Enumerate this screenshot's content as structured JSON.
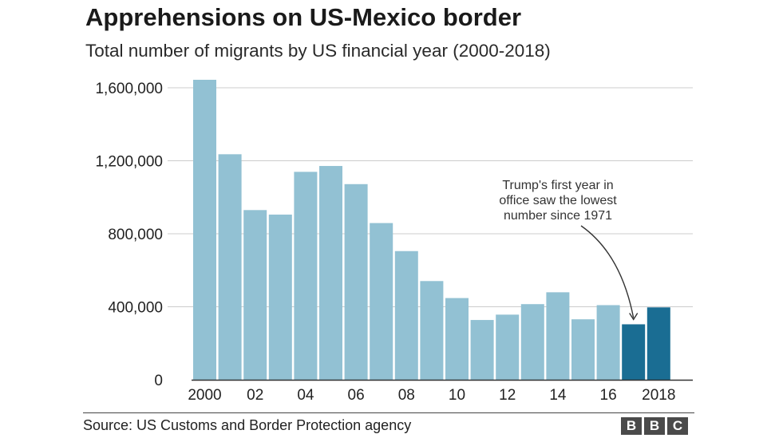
{
  "header": {
    "title": "Apprehensions on US-Mexico border",
    "subtitle": "Total number of migrants by US financial year (2000-2018)"
  },
  "footer": {
    "source": "Source: US Customs and Border Protection agency",
    "logo": [
      "B",
      "B",
      "C"
    ]
  },
  "colors": {
    "bar": "#92c1d3",
    "highlight": "#1a6d93",
    "grid": "#cccccc",
    "axis": "#333333"
  },
  "chart_data": {
    "type": "bar",
    "title": "Apprehensions on US-Mexico border",
    "subtitle": "Total number of migrants by US financial year (2000-2018)",
    "categories": [
      "2000",
      "2001",
      "2002",
      "2003",
      "2004",
      "2005",
      "2006",
      "2007",
      "2008",
      "2009",
      "2010",
      "2011",
      "2012",
      "2013",
      "2014",
      "2015",
      "2016",
      "2017",
      "2018"
    ],
    "tick_labels": [
      "2000",
      "",
      "02",
      "",
      "04",
      "",
      "06",
      "",
      "08",
      "",
      "10",
      "",
      "12",
      "",
      "14",
      "",
      "16",
      "",
      "2018"
    ],
    "values": [
      1643679,
      1235718,
      929809,
      905065,
      1139282,
      1171396,
      1071972,
      858638,
      705005,
      540865,
      447731,
      327577,
      356873,
      414397,
      479371,
      331333,
      408870,
      303916,
      396579
    ],
    "highlighted": [
      "2017",
      "2018"
    ],
    "ylim": [
      0,
      1600000
    ],
    "yticks": [
      0,
      400000,
      800000,
      1200000,
      1600000
    ],
    "ytick_labels": [
      "0",
      "400,000",
      "800,000",
      "1,200,000",
      "1,600,000"
    ],
    "grid": true,
    "xlabel": "",
    "ylabel": "",
    "annotation": {
      "target": "2017",
      "lines": [
        "Trump's first year in",
        "office saw the lowest",
        "number since 1971"
      ]
    }
  }
}
